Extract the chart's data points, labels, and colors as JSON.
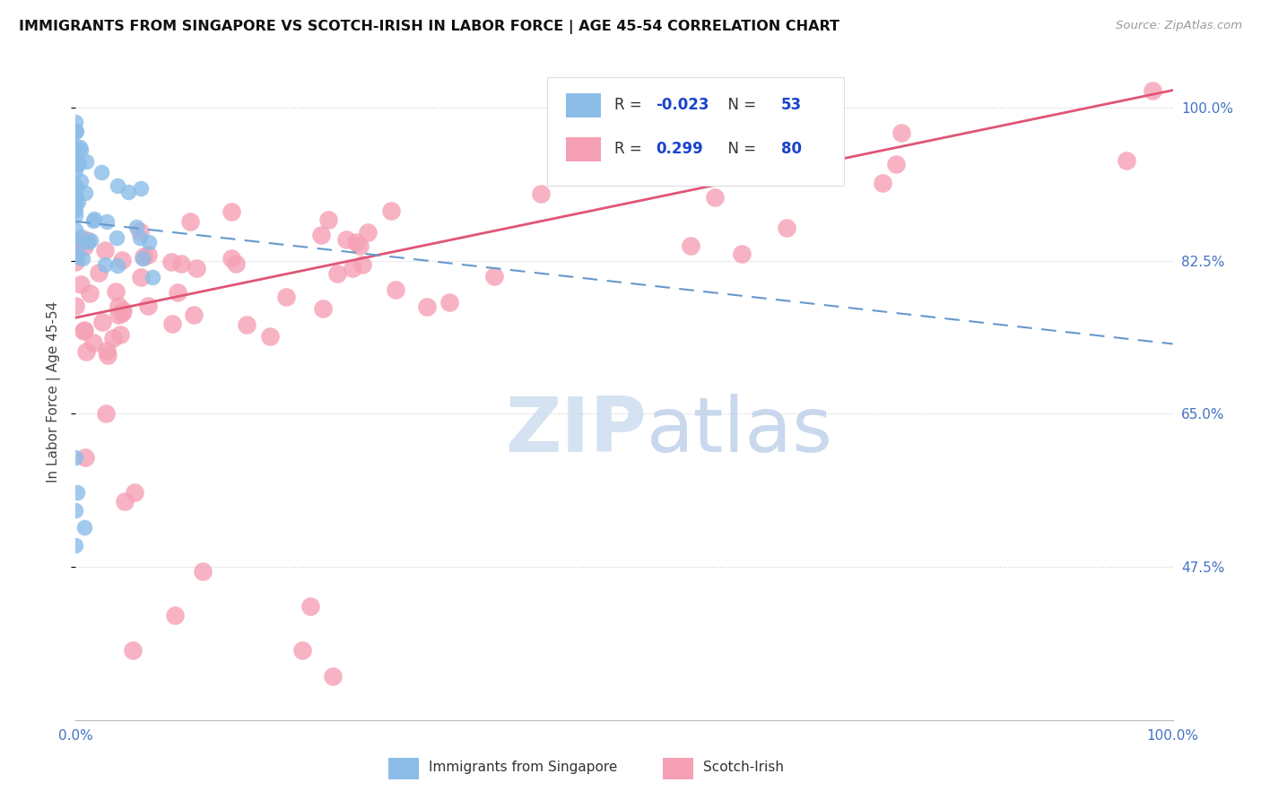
{
  "title": "IMMIGRANTS FROM SINGAPORE VS SCOTCH-IRISH IN LABOR FORCE | AGE 45-54 CORRELATION CHART",
  "source": "Source: ZipAtlas.com",
  "ylabel": "In Labor Force | Age 45-54",
  "xlim": [
    0.0,
    1.0
  ],
  "ylim": [
    0.3,
    1.05
  ],
  "ytick_vals": [
    0.475,
    0.65,
    0.825,
    1.0
  ],
  "singapore_R": -0.023,
  "singapore_N": 53,
  "scotch_irish_R": 0.299,
  "scotch_irish_N": 80,
  "legend_label_singapore": "Immigrants from Singapore",
  "legend_label_scotchirish": "Scotch-Irish",
  "singapore_color": "#8bbde8",
  "scotch_irish_color": "#f5a0b5",
  "singapore_trend_color": "#6699cc",
  "scotch_irish_trend_color": "#e05575",
  "background_color": "#ffffff",
  "grid_color": "#cccccc",
  "title_color": "#111111",
  "tick_label_color": "#4472c4",
  "watermark_zip_color": "#d0dff0",
  "watermark_atlas_color": "#b8cce8"
}
